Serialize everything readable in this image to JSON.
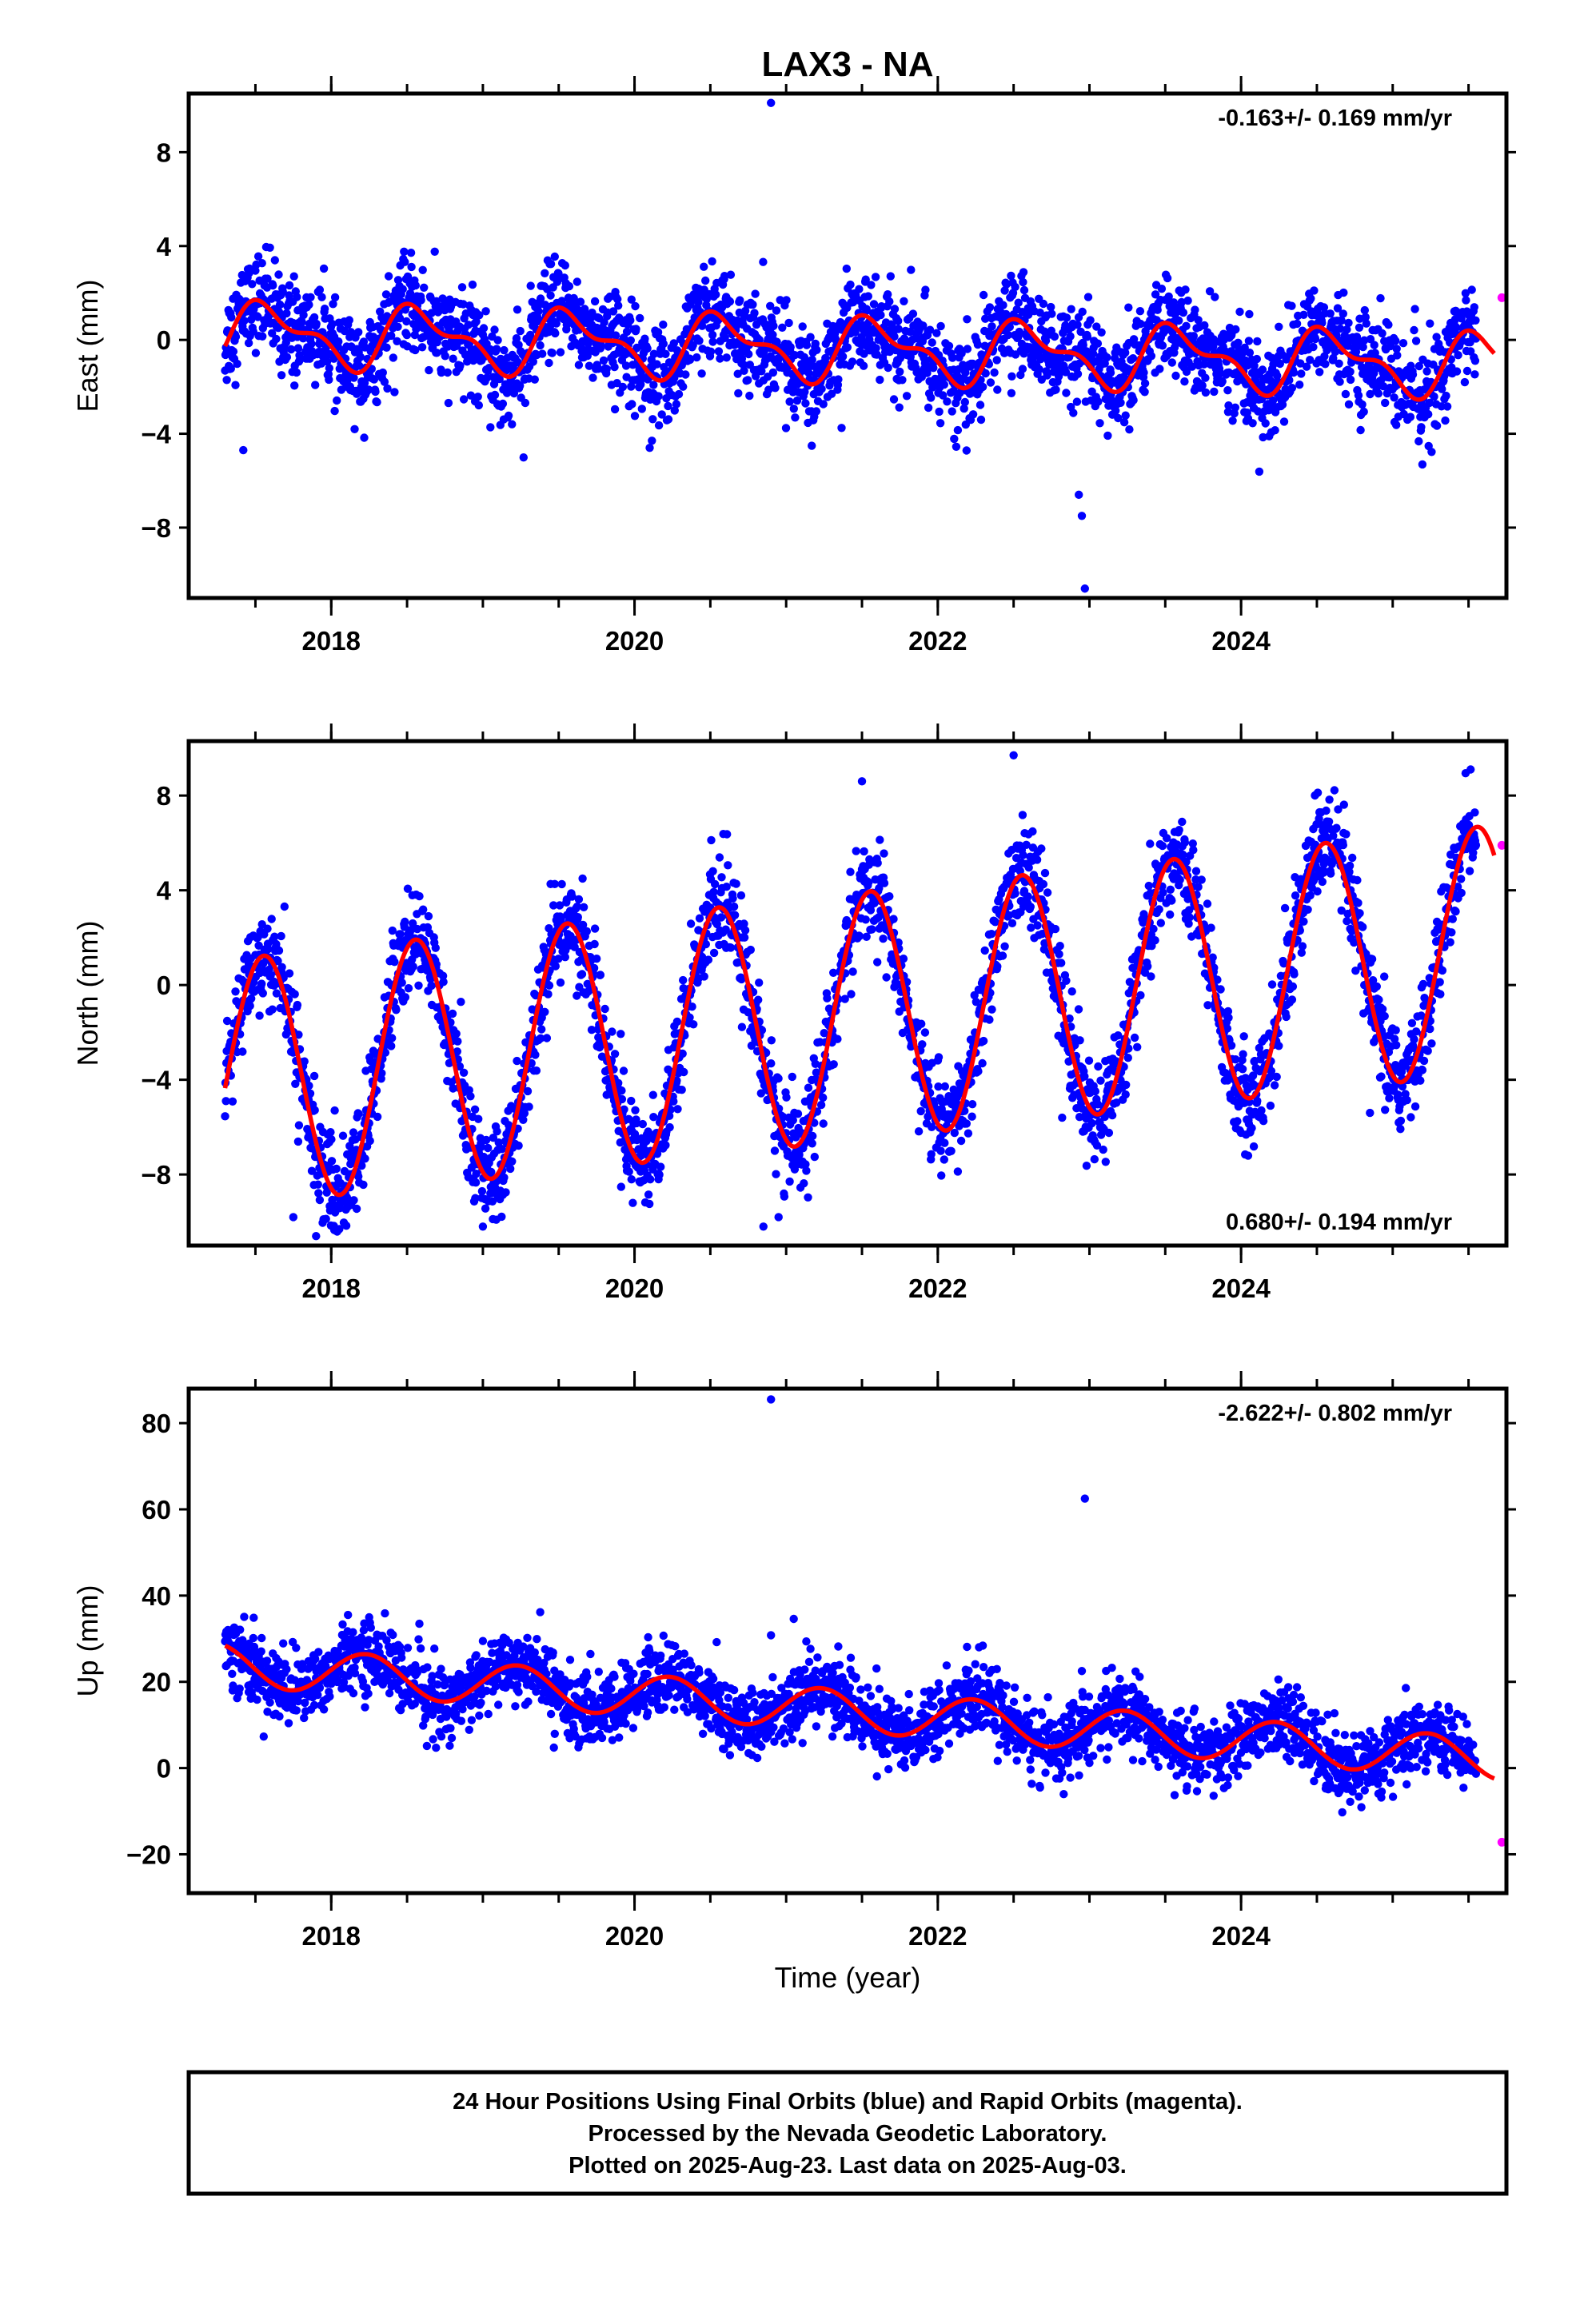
{
  "page": {
    "title": "LAX3 - NA"
  },
  "colors": {
    "final": "#0000ff",
    "rapid": "#ff00ff",
    "fit": "#ff0000",
    "frame": "#000000"
  },
  "x_axis": {
    "label": "Time (year)",
    "range": [
      2017.06,
      2025.75
    ],
    "ticks": [
      2018,
      2020,
      2022,
      2024
    ],
    "tick_labels": [
      "2018",
      "2020",
      "2022",
      "2024"
    ],
    "minor_step": 0.5
  },
  "footer": {
    "lines": [
      "24 Hour Positions Using Final Orbits (blue) and Rapid Orbits (magenta).",
      "Processed by the Nevada Geodetic Laboratory.",
      "Plotted on 2025-Aug-23. Last data on 2025-Aug-03."
    ]
  },
  "chart_data": [
    {
      "type": "scatter",
      "component": "east",
      "ylabel": "East (mm)",
      "ylim": [
        -11,
        10.5
      ],
      "yticks": [
        -8,
        -4,
        0,
        4,
        8
      ],
      "ytick_labels": [
        "−8",
        "−4",
        "0",
        "4",
        "8"
      ],
      "rate_text": "-0.163+/- 0.169 mm/yr",
      "rate_position": "top-right",
      "time_range": [
        2017.3,
        2025.55
      ],
      "noise_sd": 1.0,
      "model": {
        "trend_mm_per_yr": -0.163,
        "offset": -0.4,
        "annual_cos": -0.95,
        "annual_sin": -0.65,
        "semiannual_cos": 0.5,
        "semiannual_sin": -0.3
      },
      "outliers": [
        [
          2020.9,
          10.1
        ],
        [
          2022.97,
          -10.6
        ],
        [
          2022.95,
          -7.5
        ],
        [
          2022.93,
          -6.6
        ],
        [
          2017.42,
          -4.7
        ],
        [
          2020.1,
          -4.6
        ]
      ],
      "rapid_points": [
        [
          2025.72,
          1.8
        ]
      ]
    },
    {
      "type": "scatter",
      "component": "north",
      "ylabel": "North (mm)",
      "ylim": [
        -11,
        10.3
      ],
      "yticks": [
        -8,
        -4,
        0,
        4,
        8
      ],
      "ytick_labels": [
        "−8",
        "−4",
        "0",
        "4",
        "8"
      ],
      "rate_text": "0.680+/- 0.194 mm/yr",
      "rate_position": "bottom-right",
      "time_range": [
        2017.3,
        2025.55
      ],
      "noise_sd": 1.05,
      "model": {
        "trend_mm_per_yr": 0.68,
        "offset": -1.3,
        "annual_cos": -4.9,
        "annual_sin": -1.8,
        "semiannual_cos": 0.0,
        "semiannual_sin": 0.0
      },
      "outliers": [
        [
          2017.75,
          -9.8
        ],
        [
          2017.9,
          -10.6
        ],
        [
          2018.95,
          -9.0
        ],
        [
          2019.0,
          -10.2
        ],
        [
          2020.85,
          -10.2
        ],
        [
          2020.95,
          -9.8
        ],
        [
          2022.82,
          -5.6
        ],
        [
          2024.85,
          -5.4
        ],
        [
          2022.5,
          9.7
        ],
        [
          2021.5,
          8.6
        ]
      ],
      "rapid_points": [
        [
          2025.72,
          5.9
        ]
      ]
    },
    {
      "type": "scatter",
      "component": "up",
      "ylabel": "Up (mm)",
      "ylim": [
        -29,
        88
      ],
      "yticks": [
        -20,
        0,
        20,
        40,
        60,
        80
      ],
      "ytick_labels": [
        "−20",
        "0",
        "20",
        "40",
        "60",
        "80"
      ],
      "rate_text": "-2.622+/- 0.802 mm/yr",
      "rate_position": "top-right",
      "time_range": [
        2017.3,
        2025.55
      ],
      "noise_sd": 4.1,
      "model": {
        "trend_mm_per_yr": -2.622,
        "offset": 13.0,
        "annual_cos": 0.6,
        "annual_sin": 4.8,
        "semiannual_cos": 0.0,
        "semiannual_sin": 0.0
      },
      "outliers": [
        [
          2020.9,
          85.5
        ],
        [
          2022.97,
          62.5
        ],
        [
          2020.9,
          30.8
        ],
        [
          2021.05,
          34.6
        ],
        [
          2018.95,
          25.8
        ],
        [
          2022.95,
          22.5
        ]
      ],
      "rapid_points": [
        [
          2025.72,
          -17.2
        ]
      ]
    }
  ]
}
